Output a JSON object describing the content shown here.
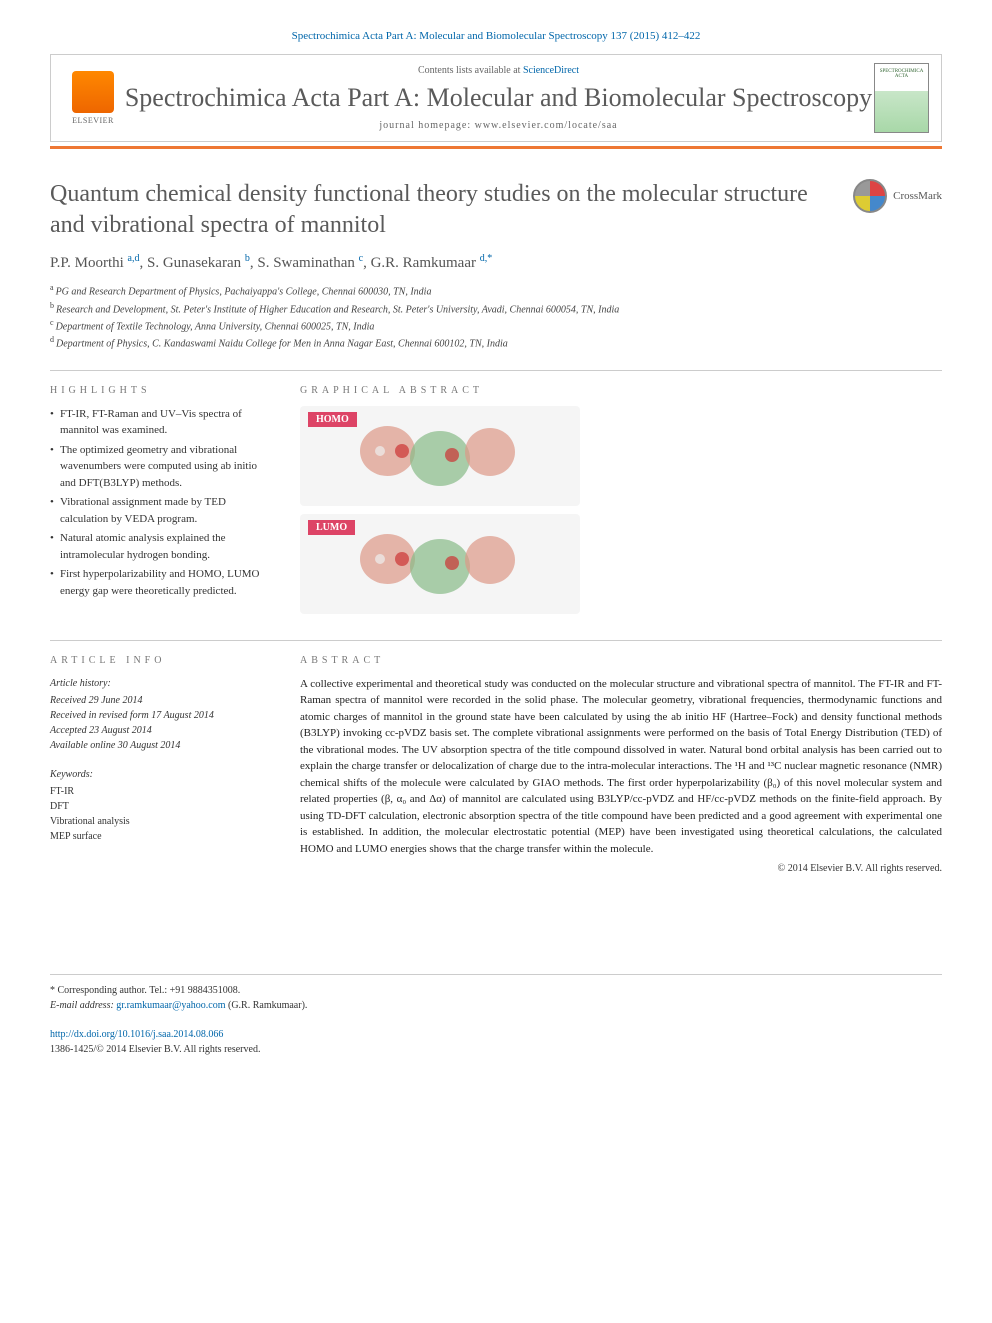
{
  "header": {
    "citation": "Spectrochimica Acta Part A: Molecular and Biomolecular Spectroscopy 137 (2015) 412–422",
    "contents_prefix": "Contents lists available at ",
    "contents_link": "ScienceDirect",
    "journal_name": "Spectrochimica Acta Part A: Molecular and Biomolecular Spectroscopy",
    "homepage_prefix": "journal homepage: ",
    "homepage": "www.elsevier.com/locate/saa",
    "elsevier_label": "ELSEVIER",
    "cover_text": "SPECTROCHIMICA ACTA"
  },
  "crossmark_label": "CrossMark",
  "article": {
    "title": "Quantum chemical density functional theory studies on the molecular structure and vibrational spectra of mannitol",
    "authors_html": "P.P. Moorthi",
    "authors": [
      {
        "name": "P.P. Moorthi",
        "sup": "a,d"
      },
      {
        "name": "S. Gunasekaran",
        "sup": "b"
      },
      {
        "name": "S. Swaminathan",
        "sup": "c"
      },
      {
        "name": "G.R. Ramkumaar",
        "sup": "d,*"
      }
    ],
    "affiliations": [
      {
        "sup": "a",
        "text": "PG and Research Department of Physics, Pachaiyappa's College, Chennai 600030, TN, India"
      },
      {
        "sup": "b",
        "text": "Research and Development, St. Peter's Institute of Higher Education and Research, St. Peter's University, Avadi, Chennai 600054, TN, India"
      },
      {
        "sup": "c",
        "text": "Department of Textile Technology, Anna University, Chennai 600025, TN, India"
      },
      {
        "sup": "d",
        "text": "Department of Physics, C. Kandaswami Naidu College for Men in Anna Nagar East, Chennai 600102, TN, India"
      }
    ]
  },
  "highlights": {
    "label": "HIGHLIGHTS",
    "items": [
      "FT-IR, FT-Raman and UV–Vis spectra of mannitol was examined.",
      "The optimized geometry and vibrational wavenumbers were computed using ab initio and DFT(B3LYP) methods.",
      "Vibrational assignment made by TED calculation by VEDA program.",
      "Natural atomic analysis explained the intramolecular hydrogen bonding.",
      "First hyperpolarizability and HOMO, LUMO energy gap were theoretically predicted."
    ]
  },
  "graphical_abstract": {
    "label": "GRAPHICAL ABSTRACT",
    "orbitals": [
      {
        "label": "HOMO",
        "label_bg": "#dd4466"
      },
      {
        "label": "LUMO",
        "label_bg": "#dd4466"
      }
    ],
    "orbital_colors": {
      "pos": "#dd9988",
      "neg": "#88bb88",
      "atom_red": "#cc3333",
      "atom_white": "#eeeeee",
      "bg": "#f5f5f5"
    }
  },
  "article_info": {
    "label": "ARTICLE INFO",
    "history_label": "Article history:",
    "history": [
      "Received 29 June 2014",
      "Received in revised form 17 August 2014",
      "Accepted 23 August 2014",
      "Available online 30 August 2014"
    ],
    "keywords_label": "Keywords:",
    "keywords": [
      "FT-IR",
      "DFT",
      "Vibrational analysis",
      "MEP surface"
    ]
  },
  "abstract": {
    "label": "ABSTRACT",
    "text": "A collective experimental and theoretical study was conducted on the molecular structure and vibrational spectra of mannitol. The FT-IR and FT-Raman spectra of mannitol were recorded in the solid phase. The molecular geometry, vibrational frequencies, thermodynamic functions and atomic charges of mannitol in the ground state have been calculated by using the ab initio HF (Hartree–Fock) and density functional methods (B3LYP) invoking cc-pVDZ basis set. The complete vibrational assignments were performed on the basis of Total Energy Distribution (TED) of the vibrational modes. The UV absorption spectra of the title compound dissolved in water. Natural bond orbital analysis has been carried out to explain the charge transfer or delocalization of charge due to the intra-molecular interactions. The ¹H and ¹³C nuclear magnetic resonance (NMR) chemical shifts of the molecule were calculated by GIAO methods. The first order hyperpolarizability (β₀) of this novel molecular system and related properties (β, α₀ and Δα) of mannitol are calculated using B3LYP/cc-pVDZ and HF/cc-pVDZ methods on the finite-field approach. By using TD-DFT calculation, electronic absorption spectra of the title compound have been predicted and a good agreement with experimental one is established. In addition, the molecular electrostatic potential (MEP) have been investigated using theoretical calculations, the calculated HOMO and LUMO energies shows that the charge transfer within the molecule.",
    "copyright": "© 2014 Elsevier B.V. All rights reserved."
  },
  "footer": {
    "corresponding": "* Corresponding author. Tel.: +91 9884351008.",
    "email_label": "E-mail address: ",
    "email": "gr.ramkumaar@yahoo.com",
    "email_name": " (G.R. Ramkumaar).",
    "doi": "http://dx.doi.org/10.1016/j.saa.2014.08.066",
    "issn_copyright": "1386-1425/© 2014 Elsevier B.V. All rights reserved."
  },
  "colors": {
    "link": "#0066aa",
    "orange_bar": "#ee7733",
    "text_grey": "#5a5a5a",
    "label_grey": "#777777"
  }
}
